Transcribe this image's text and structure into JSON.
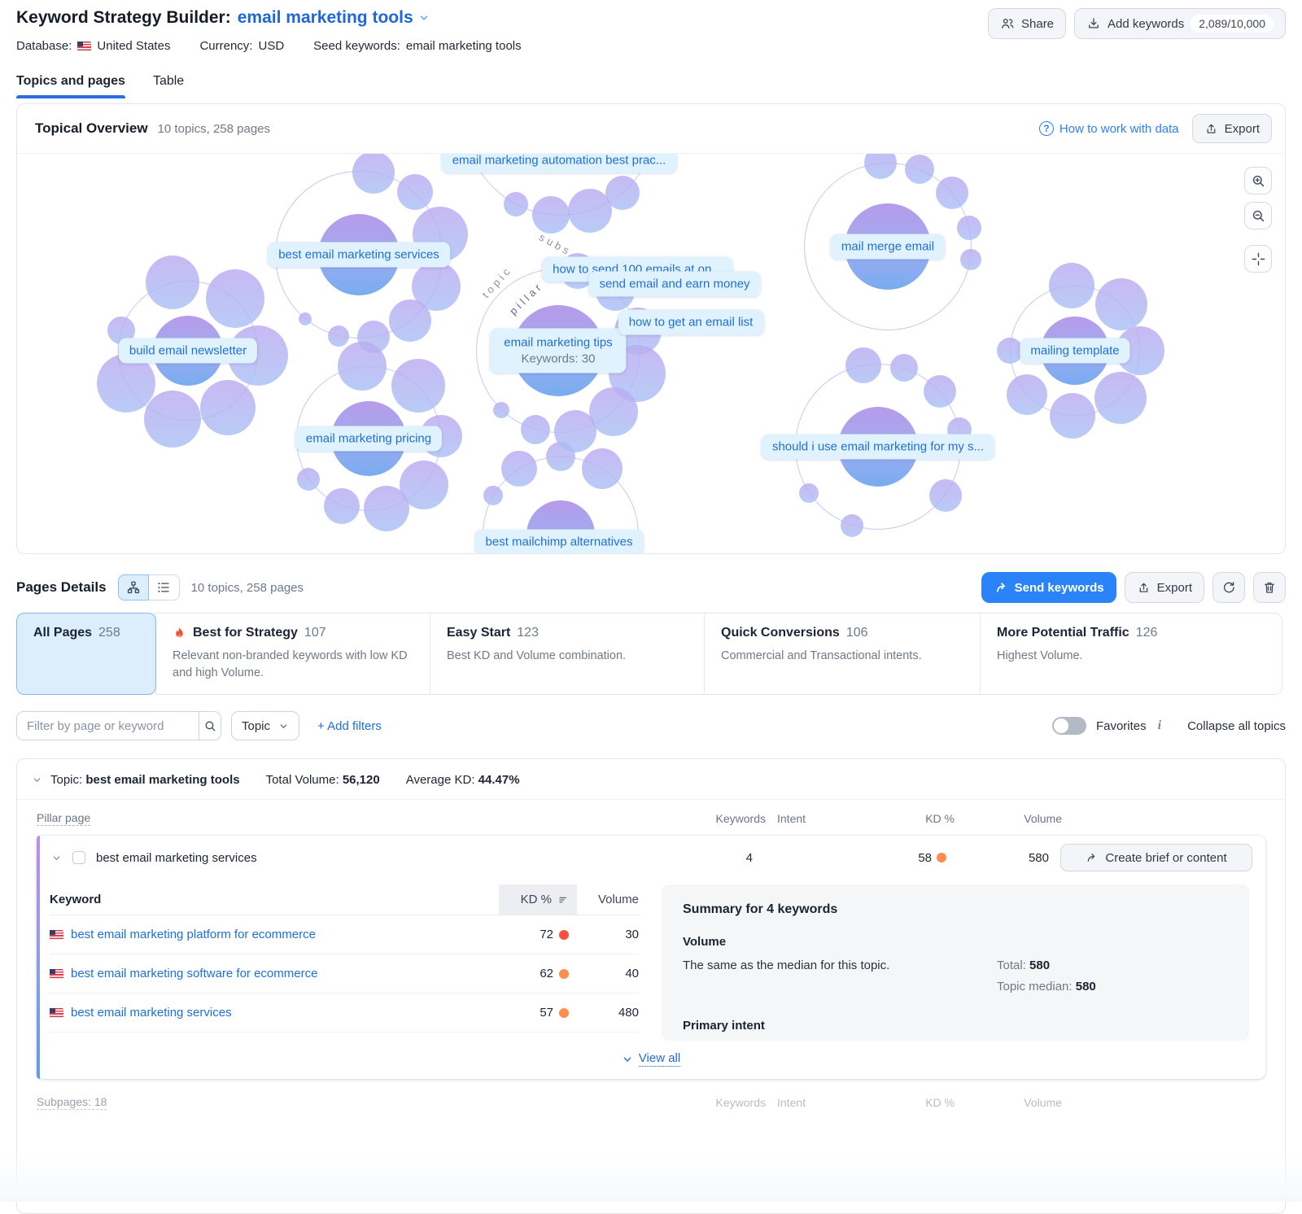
{
  "header": {
    "title": "Keyword Strategy Builder:",
    "project": "email marketing tools",
    "share_label": "Share",
    "add_keywords_label": "Add keywords",
    "keywords_count": "2,089/10,000",
    "database_label": "Database:",
    "database_value": "United States",
    "currency_label": "Currency:",
    "currency_value": "USD",
    "seed_label": "Seed keywords:",
    "seed_value": "email marketing tools"
  },
  "tabs": [
    {
      "label": "Topics and pages"
    },
    {
      "label": "Table"
    }
  ],
  "topical_overview": {
    "title": "Topical Overview",
    "subtitle": "10 topics, 258 pages",
    "help_link": "How to work with data",
    "export_label": "Export",
    "ring_labels": {
      "topic": "topic",
      "pillar": "pillar",
      "subs": "subs"
    },
    "center_cluster": {
      "label": "email marketing tips",
      "sublabel": "Keywords: 30"
    },
    "cluster_labels": [
      "email marketing automation best prac...",
      "best email marketing services",
      "build email newsletter",
      "email marketing pricing",
      "mail merge email",
      "should i use email marketing for my s...",
      "mailing template",
      "best mailchimp alternatives"
    ],
    "sub_labels": [
      "how to send 100 emails at on...",
      "send email and earn money",
      "how to get an email list"
    ]
  },
  "pages_details": {
    "title": "Pages Details",
    "subtitle": "10 topics, 258 pages",
    "send_keywords_label": "Send keywords",
    "export_label": "Export",
    "cards": [
      {
        "title": "All Pages",
        "count": "258",
        "desc": ""
      },
      {
        "title": "Best for Strategy",
        "count": "107",
        "desc": "Relevant non-branded keywords with low KD and high Volume."
      },
      {
        "title": "Easy Start",
        "count": "123",
        "desc": "Best KD and Volume combination."
      },
      {
        "title": "Quick Conversions",
        "count": "106",
        "desc": "Commercial and Transactional intents."
      },
      {
        "title": "More Potential Traffic",
        "count": "126",
        "desc": "Highest Volume."
      }
    ]
  },
  "filters": {
    "search_placeholder": "Filter by page or keyword",
    "topic_label": "Topic",
    "add_filters_label": "+ Add filters",
    "favorites_label": "Favorites",
    "collapse_label": "Collapse all topics"
  },
  "topic_group": {
    "prefix": "Topic:",
    "name": "best email marketing tools",
    "total_volume_label": "Total Volume:",
    "total_volume": "56,120",
    "avg_kd_label": "Average KD:",
    "avg_kd": "44.47%"
  },
  "table_headers": {
    "pillar_page": "Pillar page",
    "keywords": "Keywords",
    "intent": "Intent",
    "kd": "KD %",
    "volume": "Volume"
  },
  "pillar_row": {
    "name": "best email marketing services",
    "keywords": "4",
    "kd": "58",
    "volume": "580",
    "action_label": "Create brief or content"
  },
  "keyword_table": {
    "keyword_header": "Keyword",
    "kd_header": "KD %",
    "volume_header": "Volume",
    "rows": [
      {
        "keyword": "best email marketing platform for ecommerce",
        "kd": "72",
        "kd_color": "#f9503c",
        "volume": "30"
      },
      {
        "keyword": "best email marketing software for ecommerce",
        "kd": "62",
        "kd_color": "#ff8d4d",
        "volume": "40"
      },
      {
        "keyword": "best email marketing services",
        "kd": "57",
        "kd_color": "#ff8d4d",
        "volume": "480"
      }
    ]
  },
  "summary": {
    "title": "Summary for 4 keywords",
    "volume_title": "Volume",
    "volume_desc": "The same as the median for this topic.",
    "total_label": "Total:",
    "total_value": "580",
    "median_label": "Topic median:",
    "median_value": "580",
    "intent_title": "Primary intent"
  },
  "view_all_label": "View all",
  "subpages_label": "Subpages: 18",
  "colors": {
    "accent_blue": "#2b84f7",
    "link_blue": "#1f6ed8",
    "intent_bar": "#fdb53f",
    "kd_hard": "#f9503c",
    "kd_difficult": "#ff8d4d",
    "intent_pill": "#f8d568",
    "pillar_kd_color": "#ff8d4d"
  }
}
